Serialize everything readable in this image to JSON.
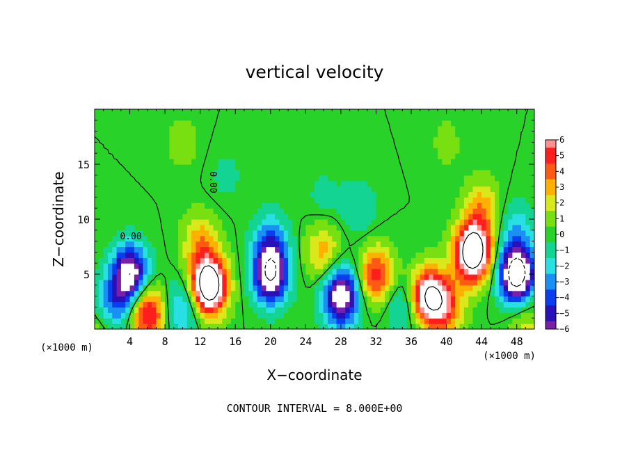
{
  "chart_data": {
    "type": "heatmap",
    "title": "vertical velocity",
    "xlabel": "X−coordinate",
    "ylabel": "Z−coordinate",
    "x_unit": "(×1000 m)",
    "z_unit": "(×1000 m)",
    "xlim": [
      0,
      50
    ],
    "ylim": [
      0,
      20
    ],
    "x_ticks": [
      4,
      8,
      12,
      16,
      20,
      24,
      28,
      32,
      36,
      40,
      44,
      48
    ],
    "y_ticks": [
      5,
      10,
      15
    ],
    "colorbar": {
      "min": -6,
      "max": 6,
      "labels": [
        "6",
        "5",
        "4",
        "3",
        "2",
        "1",
        "0",
        "−1",
        "−2",
        "−3",
        "−4",
        "−5",
        "−6"
      ]
    },
    "contour_labels": [
      "0.00",
      "0.00"
    ],
    "contour_interval_text": "CONTOUR INTERVAL = 8.000E+00",
    "features": [
      {
        "x": 4,
        "z": 5,
        "value": -8
      },
      {
        "x": 2,
        "z": 2,
        "value": -4
      },
      {
        "x": 6,
        "z": 1.5,
        "value": 6
      },
      {
        "x": 10,
        "z": 2,
        "value": -3
      },
      {
        "x": 13,
        "z": 4,
        "value": 11
      },
      {
        "x": 12,
        "z": 8,
        "value": 3
      },
      {
        "x": 15,
        "z": 14,
        "value": -0.8
      },
      {
        "x": 20,
        "z": 5,
        "value": -8
      },
      {
        "x": 20,
        "z": 8,
        "value": -3
      },
      {
        "x": 26,
        "z": 12,
        "value": -0.8
      },
      {
        "x": 26,
        "z": 7,
        "value": 3
      },
      {
        "x": 28,
        "z": 3,
        "value": -8
      },
      {
        "x": 30,
        "z": 11,
        "value": -1.5
      },
      {
        "x": 32,
        "z": 5,
        "value": 5
      },
      {
        "x": 35,
        "z": 2,
        "value": -2
      },
      {
        "x": 38,
        "z": 3,
        "value": 8
      },
      {
        "x": 40,
        "z": 2,
        "value": 4
      },
      {
        "x": 43,
        "z": 7,
        "value": 11
      },
      {
        "x": 44,
        "z": 11,
        "value": 3
      },
      {
        "x": 48,
        "z": 5,
        "value": -10
      },
      {
        "x": 48,
        "z": 9,
        "value": -2
      },
      {
        "x": 49,
        "z": 0.5,
        "value": 2
      },
      {
        "x": 1,
        "z": 0.5,
        "value": 2
      },
      {
        "x": 10,
        "z": 17,
        "value": 1
      },
      {
        "x": 40,
        "z": 17,
        "value": 0.8
      }
    ]
  }
}
